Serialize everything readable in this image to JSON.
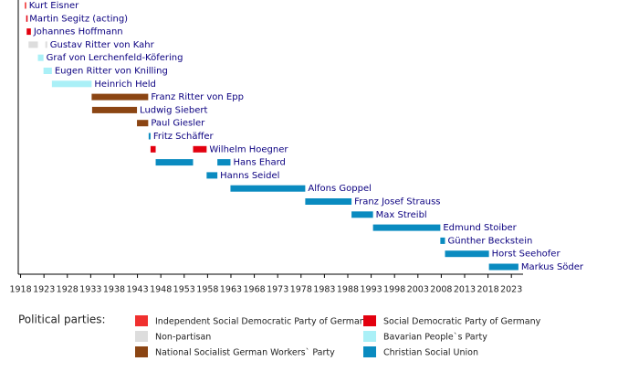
{
  "chart_data": {
    "type": "timeline",
    "xlim": [
      1917.5,
      2025.5
    ],
    "xticks": [
      1918,
      1923,
      1928,
      1933,
      1938,
      1943,
      1948,
      1953,
      1958,
      1963,
      1968,
      1973,
      1978,
      1983,
      1988,
      1993,
      1998,
      2003,
      2008,
      2013,
      2018,
      2023
    ],
    "legend_title": "Political parties:",
    "parties": [
      {
        "name": "Independent Social Democratic Party of Germany",
        "color": "#f0302f"
      },
      {
        "name": "Social Democratic Party of Germany",
        "color": "#e3000f"
      },
      {
        "name": "Non-partisan",
        "color": "#dddddd"
      },
      {
        "name": "Bavarian People`s Party",
        "color": "#aaf0f7"
      },
      {
        "name": "National Socialist German Workers` Party",
        "color": "#8b4513"
      },
      {
        "name": "Christian Social Union",
        "color": "#0a8bc0"
      }
    ],
    "rows": [
      {
        "name": "Kurt Eisner",
        "party": 0,
        "segments": [
          [
            1918.9,
            1919.2
          ]
        ]
      },
      {
        "name": "Martin Segitz (acting)",
        "party": 1,
        "segments": [
          [
            1919.2,
            1919.3
          ]
        ]
      },
      {
        "name": "Johannes Hoffmann",
        "party": 1,
        "segments": [
          [
            1919.3,
            1920.2
          ]
        ]
      },
      {
        "name": "Gustav Ritter von Kahr",
        "party": 2,
        "segments": [
          [
            1919.7,
            1921.7
          ],
          [
            1923.3,
            1923.7
          ]
        ]
      },
      {
        "name": "Graf von Lerchenfeld-Köfering",
        "party": 3,
        "segments": [
          [
            1921.7,
            1922.9
          ]
        ]
      },
      {
        "name": "Eugen Ritter von Knilling",
        "party": 3,
        "segments": [
          [
            1922.9,
            1924.7
          ]
        ]
      },
      {
        "name": "Heinrich Held",
        "party": 3,
        "segments": [
          [
            1924.7,
            1933.2
          ]
        ]
      },
      {
        "name": "Franz Ritter von Epp",
        "party": 4,
        "segments": [
          [
            1933.2,
            1945.3
          ]
        ]
      },
      {
        "name": "Ludwig Siebert",
        "party": 4,
        "segments": [
          [
            1933.3,
            1942.9
          ]
        ]
      },
      {
        "name": "Paul Giesler",
        "party": 4,
        "segments": [
          [
            1942.9,
            1945.3
          ]
        ]
      },
      {
        "name": "Fritz Schäffer",
        "party": 5,
        "segments": [
          [
            1945.4,
            1945.8
          ]
        ]
      },
      {
        "name": "Wilhelm Hoegner",
        "party": 1,
        "segments": [
          [
            1945.8,
            1946.9
          ],
          [
            1954.9,
            1957.8
          ]
        ]
      },
      {
        "name": "Hans Ehard",
        "party": 5,
        "segments": [
          [
            1946.9,
            1954.9
          ],
          [
            1960.1,
            1962.9
          ]
        ]
      },
      {
        "name": "Hanns Seidel",
        "party": 5,
        "segments": [
          [
            1957.8,
            1960.1
          ]
        ]
      },
      {
        "name": "Alfons Goppel",
        "party": 5,
        "segments": [
          [
            1962.9,
            1978.9
          ]
        ]
      },
      {
        "name": "Franz Josef Strauss",
        "party": 5,
        "segments": [
          [
            1978.9,
            1988.8
          ]
        ]
      },
      {
        "name": "Max Streibl",
        "party": 5,
        "segments": [
          [
            1988.8,
            1993.4
          ]
        ]
      },
      {
        "name": "Edmund Stoiber",
        "party": 5,
        "segments": [
          [
            1993.4,
            2007.8
          ]
        ]
      },
      {
        "name": "Günther Beckstein",
        "party": 5,
        "segments": [
          [
            2007.8,
            2008.8
          ]
        ]
      },
      {
        "name": "Horst Seehofer",
        "party": 5,
        "segments": [
          [
            2008.8,
            2018.2
          ]
        ]
      },
      {
        "name": "Markus Söder",
        "party": 5,
        "segments": [
          [
            2018.2,
            2024.5
          ]
        ]
      }
    ]
  }
}
